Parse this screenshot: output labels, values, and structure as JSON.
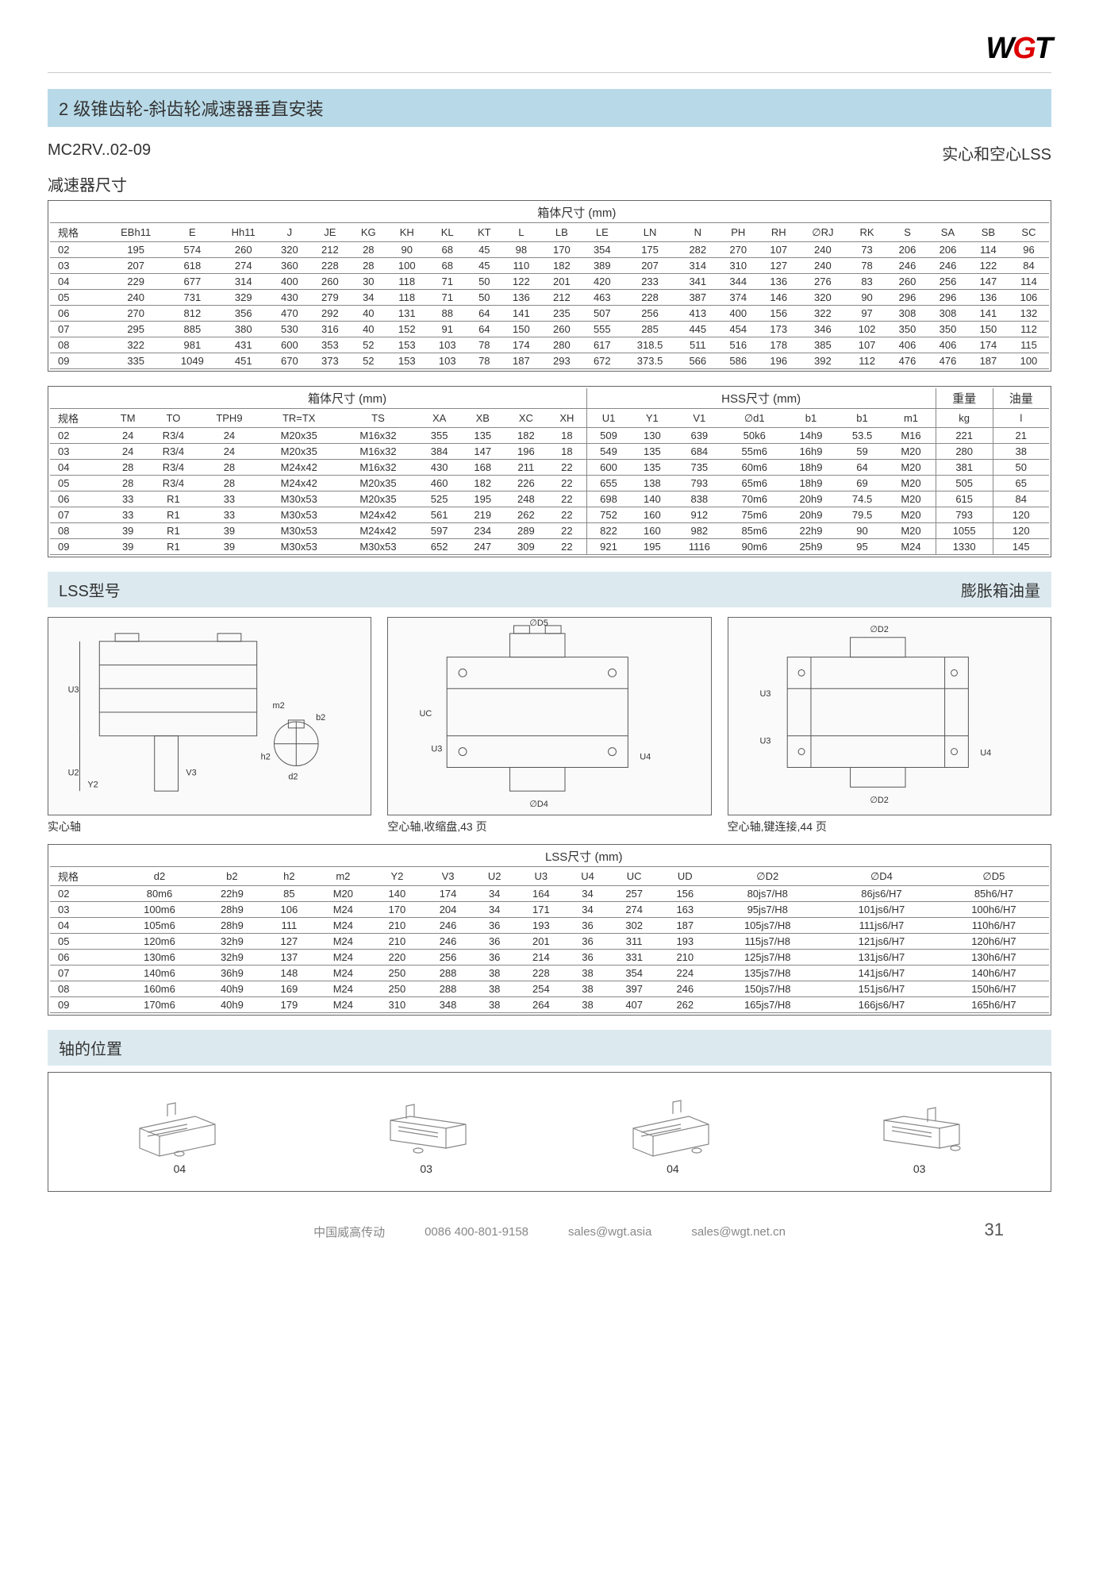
{
  "logo": {
    "w": "W",
    "g": "G",
    "t": "T"
  },
  "title": "2 级锥齿轮-斜齿轮减速器垂直安装",
  "model": "MC2RV..02-09",
  "rsub": "实心和空心LSS",
  "section_dim": "减速器尺寸",
  "t1": {
    "group": "箱体尺寸 (mm)",
    "cols": [
      "规格",
      "EBh11",
      "E",
      "Hh11",
      "J",
      "JE",
      "KG",
      "KH",
      "KL",
      "KT",
      "L",
      "LB",
      "LE",
      "LN",
      "N",
      "PH",
      "RH",
      "∅RJ",
      "RK",
      "S",
      "SA",
      "SB",
      "SC"
    ],
    "rows": [
      [
        "02",
        "195",
        "574",
        "260",
        "320",
        "212",
        "28",
        "90",
        "68",
        "45",
        "98",
        "170",
        "354",
        "175",
        "282",
        "270",
        "107",
        "240",
        "73",
        "206",
        "206",
        "114",
        "96"
      ],
      [
        "03",
        "207",
        "618",
        "274",
        "360",
        "228",
        "28",
        "100",
        "68",
        "45",
        "110",
        "182",
        "389",
        "207",
        "314",
        "310",
        "127",
        "240",
        "78",
        "246",
        "246",
        "122",
        "84"
      ],
      [
        "04",
        "229",
        "677",
        "314",
        "400",
        "260",
        "30",
        "118",
        "71",
        "50",
        "122",
        "201",
        "420",
        "233",
        "341",
        "344",
        "136",
        "276",
        "83",
        "260",
        "256",
        "147",
        "114"
      ],
      [
        "05",
        "240",
        "731",
        "329",
        "430",
        "279",
        "34",
        "118",
        "71",
        "50",
        "136",
        "212",
        "463",
        "228",
        "387",
        "374",
        "146",
        "320",
        "90",
        "296",
        "296",
        "136",
        "106"
      ],
      [
        "06",
        "270",
        "812",
        "356",
        "470",
        "292",
        "40",
        "131",
        "88",
        "64",
        "141",
        "235",
        "507",
        "256",
        "413",
        "400",
        "156",
        "322",
        "97",
        "308",
        "308",
        "141",
        "132"
      ],
      [
        "07",
        "295",
        "885",
        "380",
        "530",
        "316",
        "40",
        "152",
        "91",
        "64",
        "150",
        "260",
        "555",
        "285",
        "445",
        "454",
        "173",
        "346",
        "102",
        "350",
        "350",
        "150",
        "112"
      ],
      [
        "08",
        "322",
        "981",
        "431",
        "600",
        "353",
        "52",
        "153",
        "103",
        "78",
        "174",
        "280",
        "617",
        "318.5",
        "511",
        "516",
        "178",
        "385",
        "107",
        "406",
        "406",
        "174",
        "115"
      ],
      [
        "09",
        "335",
        "1049",
        "451",
        "670",
        "373",
        "52",
        "153",
        "103",
        "78",
        "187",
        "293",
        "672",
        "373.5",
        "566",
        "586",
        "196",
        "392",
        "112",
        "476",
        "476",
        "187",
        "100"
      ]
    ]
  },
  "t2": {
    "g1": "箱体尺寸 (mm)",
    "g2": "HSS尺寸 (mm)",
    "g3": "重量",
    "g4": "油量",
    "cols": [
      "规格",
      "TM",
      "TO",
      "TPH9",
      "TR=TX",
      "TS",
      "XA",
      "XB",
      "XC",
      "XH",
      "U1",
      "Y1",
      "V1",
      "∅d1",
      "b1",
      "b1",
      "m1",
      "kg",
      "l"
    ],
    "rows": [
      [
        "02",
        "24",
        "R3/4",
        "24",
        "M20x35",
        "M16x32",
        "355",
        "135",
        "182",
        "18",
        "509",
        "130",
        "639",
        "50k6",
        "14h9",
        "53.5",
        "M16",
        "221",
        "21"
      ],
      [
        "03",
        "24",
        "R3/4",
        "24",
        "M20x35",
        "M16x32",
        "384",
        "147",
        "196",
        "18",
        "549",
        "135",
        "684",
        "55m6",
        "16h9",
        "59",
        "M20",
        "280",
        "38"
      ],
      [
        "04",
        "28",
        "R3/4",
        "28",
        "M24x42",
        "M16x32",
        "430",
        "168",
        "211",
        "22",
        "600",
        "135",
        "735",
        "60m6",
        "18h9",
        "64",
        "M20",
        "381",
        "50"
      ],
      [
        "05",
        "28",
        "R3/4",
        "28",
        "M24x42",
        "M20x35",
        "460",
        "182",
        "226",
        "22",
        "655",
        "138",
        "793",
        "65m6",
        "18h9",
        "69",
        "M20",
        "505",
        "65"
      ],
      [
        "06",
        "33",
        "R1",
        "33",
        "M30x53",
        "M20x35",
        "525",
        "195",
        "248",
        "22",
        "698",
        "140",
        "838",
        "70m6",
        "20h9",
        "74.5",
        "M20",
        "615",
        "84"
      ],
      [
        "07",
        "33",
        "R1",
        "33",
        "M30x53",
        "M24x42",
        "561",
        "219",
        "262",
        "22",
        "752",
        "160",
        "912",
        "75m6",
        "20h9",
        "79.5",
        "M20",
        "793",
        "120"
      ],
      [
        "08",
        "39",
        "R1",
        "39",
        "M30x53",
        "M24x42",
        "597",
        "234",
        "289",
        "22",
        "822",
        "160",
        "982",
        "85m6",
        "22h9",
        "90",
        "M20",
        "1055",
        "120"
      ],
      [
        "09",
        "39",
        "R1",
        "39",
        "M30x53",
        "M30x53",
        "652",
        "247",
        "309",
        "22",
        "921",
        "195",
        "1116",
        "90m6",
        "25h9",
        "95",
        "M24",
        "1330",
        "145"
      ]
    ]
  },
  "lss_label": "LSS型号",
  "lss_right": "膨胀箱油量",
  "diag_captions": [
    "实心轴",
    "空心轴,收缩盘,43 页",
    "空心轴,键连接,44 页"
  ],
  "diag_labels": {
    "d1": [
      "U3",
      "U2",
      "Y2",
      "V3",
      "m2",
      "b2",
      "h2",
      "d2"
    ],
    "d2": [
      "∅D5",
      "UC",
      "U3",
      "U4",
      "∅D4"
    ],
    "d3": [
      "∅D2",
      "U3",
      "U3",
      "U4",
      "∅D2"
    ]
  },
  "t3": {
    "group": "LSS尺寸 (mm)",
    "cols": [
      "规格",
      "d2",
      "b2",
      "h2",
      "m2",
      "Y2",
      "V3",
      "U2",
      "U3",
      "U4",
      "UC",
      "UD",
      "∅D2",
      "∅D4",
      "∅D5"
    ],
    "rows": [
      [
        "02",
        "80m6",
        "22h9",
        "85",
        "M20",
        "140",
        "174",
        "34",
        "164",
        "34",
        "257",
        "156",
        "80js7/H8",
        "86js6/H7",
        "85h6/H7"
      ],
      [
        "03",
        "100m6",
        "28h9",
        "106",
        "M24",
        "170",
        "204",
        "34",
        "171",
        "34",
        "274",
        "163",
        "95js7/H8",
        "101js6/H7",
        "100h6/H7"
      ],
      [
        "04",
        "105m6",
        "28h9",
        "111",
        "M24",
        "210",
        "246",
        "36",
        "193",
        "36",
        "302",
        "187",
        "105js7/H8",
        "111js6/H7",
        "110h6/H7"
      ],
      [
        "05",
        "120m6",
        "32h9",
        "127",
        "M24",
        "210",
        "246",
        "36",
        "201",
        "36",
        "311",
        "193",
        "115js7/H8",
        "121js6/H7",
        "120h6/H7"
      ],
      [
        "06",
        "130m6",
        "32h9",
        "137",
        "M24",
        "220",
        "256",
        "36",
        "214",
        "36",
        "331",
        "210",
        "125js7/H8",
        "131js6/H7",
        "130h6/H7"
      ],
      [
        "07",
        "140m6",
        "36h9",
        "148",
        "M24",
        "250",
        "288",
        "38",
        "228",
        "38",
        "354",
        "224",
        "135js7/H8",
        "141js6/H7",
        "140h6/H7"
      ],
      [
        "08",
        "160m6",
        "40h9",
        "169",
        "M24",
        "250",
        "288",
        "38",
        "254",
        "38",
        "397",
        "246",
        "150js7/H8",
        "151js6/H7",
        "150h6/H7"
      ],
      [
        "09",
        "170m6",
        "40h9",
        "179",
        "M24",
        "310",
        "348",
        "38",
        "264",
        "38",
        "407",
        "262",
        "165js7/H8",
        "166js6/H7",
        "165h6/H7"
      ]
    ]
  },
  "shaft_label": "轴的位置",
  "shaft_items": [
    "04",
    "03",
    "04",
    "03"
  ],
  "footer": {
    "company": "中国威高传动",
    "phone": "0086 400-801-9158",
    "email1": "sales@wgt.asia",
    "email2": "sales@wgt.net.cn",
    "page": "31"
  }
}
